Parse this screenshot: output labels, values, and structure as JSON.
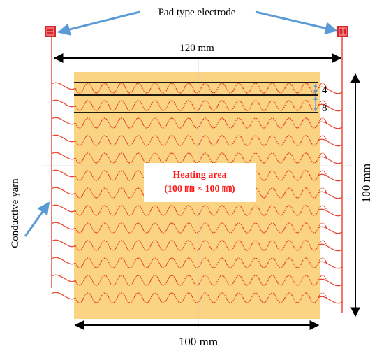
{
  "colors": {
    "heating_fill": "#fbd483",
    "yarn": "#e8412c",
    "electrode": "#d8242a",
    "arrow_blue": "#5b9bd5",
    "dimension": "#000000",
    "heating_label": "#ff1a1a"
  },
  "labels": {
    "pad_electrode": "Pad type electrode",
    "conductive_yarn": "Conductive yarn",
    "width_dim": "120 mm",
    "height_dim": "100 mm",
    "bottom_dim": "100 mm",
    "spacing_small": "4",
    "spacing_large": "8"
  },
  "heating_area": {
    "title": "Heating area",
    "size": "(100 ㎜ × 100 ㎜)"
  },
  "diagram": {
    "wave_rows": 13
  }
}
